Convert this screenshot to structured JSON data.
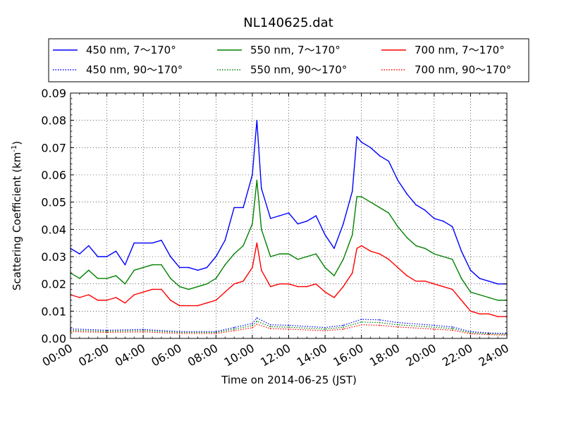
{
  "chart_data": {
    "type": "line",
    "title": "NL140625.dat",
    "xlabel": "Time on 2014-06-25 (JST)",
    "ylabel": "Scattering Coefficient (km",
    "ylabel_sup": "-1",
    "ylabel_close": ")",
    "xlim": [
      "00:00",
      "24:00"
    ],
    "ylim": [
      0,
      0.09
    ],
    "xticks": [
      "00:00",
      "02:00",
      "04:00",
      "06:00",
      "08:00",
      "10:00",
      "12:00",
      "14:00",
      "16:00",
      "18:00",
      "20:00",
      "22:00",
      "24:00"
    ],
    "yticks": [
      "0.00",
      "0.01",
      "0.02",
      "0.03",
      "0.04",
      "0.05",
      "0.06",
      "0.07",
      "0.08",
      "0.09"
    ],
    "grid": true,
    "legend_position": "top",
    "series": [
      {
        "name": "450 nm, 7～170°",
        "color": "#0000ff",
        "style": "solid",
        "x": [
          "00:00",
          "00:30",
          "01:00",
          "01:30",
          "02:00",
          "02:30",
          "03:00",
          "03:30",
          "04:00",
          "04:30",
          "05:00",
          "05:30",
          "06:00",
          "06:30",
          "07:00",
          "07:30",
          "08:00",
          "08:30",
          "09:00",
          "09:30",
          "10:00",
          "10:15",
          "10:30",
          "11:00",
          "11:30",
          "12:00",
          "12:30",
          "13:00",
          "13:30",
          "14:00",
          "14:30",
          "15:00",
          "15:30",
          "15:45",
          "16:00",
          "16:30",
          "17:00",
          "17:30",
          "18:00",
          "18:30",
          "19:00",
          "19:30",
          "20:00",
          "20:30",
          "21:00",
          "21:30",
          "22:00",
          "22:30",
          "23:00",
          "23:30",
          "24:00"
        ],
        "values": [
          0.033,
          0.031,
          0.034,
          0.03,
          0.03,
          0.032,
          0.027,
          0.035,
          0.035,
          0.035,
          0.036,
          0.03,
          0.026,
          0.026,
          0.025,
          0.026,
          0.03,
          0.036,
          0.048,
          0.048,
          0.06,
          0.08,
          0.055,
          0.044,
          0.045,
          0.046,
          0.042,
          0.043,
          0.045,
          0.038,
          0.033,
          0.042,
          0.054,
          0.074,
          0.072,
          0.07,
          0.067,
          0.065,
          0.058,
          0.053,
          0.049,
          0.047,
          0.044,
          0.043,
          0.041,
          0.032,
          0.025,
          0.022,
          0.021,
          0.02,
          0.02
        ]
      },
      {
        "name": "550 nm, 7～170°",
        "color": "#008000",
        "style": "solid",
        "x": [
          "00:00",
          "00:30",
          "01:00",
          "01:30",
          "02:00",
          "02:30",
          "03:00",
          "03:30",
          "04:00",
          "04:30",
          "05:00",
          "05:30",
          "06:00",
          "06:30",
          "07:00",
          "07:30",
          "08:00",
          "08:30",
          "09:00",
          "09:30",
          "10:00",
          "10:15",
          "10:30",
          "11:00",
          "11:30",
          "12:00",
          "12:30",
          "13:00",
          "13:30",
          "14:00",
          "14:30",
          "15:00",
          "15:30",
          "15:45",
          "16:00",
          "16:30",
          "17:00",
          "17:30",
          "18:00",
          "18:30",
          "19:00",
          "19:30",
          "20:00",
          "20:30",
          "21:00",
          "21:30",
          "22:00",
          "22:30",
          "23:00",
          "23:30",
          "24:00"
        ],
        "values": [
          0.024,
          0.022,
          0.025,
          0.022,
          0.022,
          0.023,
          0.02,
          0.025,
          0.026,
          0.027,
          0.027,
          0.022,
          0.019,
          0.018,
          0.019,
          0.02,
          0.022,
          0.027,
          0.031,
          0.034,
          0.042,
          0.058,
          0.04,
          0.03,
          0.031,
          0.031,
          0.029,
          0.03,
          0.031,
          0.026,
          0.023,
          0.029,
          0.038,
          0.052,
          0.052,
          0.05,
          0.048,
          0.046,
          0.041,
          0.037,
          0.034,
          0.033,
          0.031,
          0.03,
          0.029,
          0.022,
          0.017,
          0.016,
          0.015,
          0.014,
          0.014
        ]
      },
      {
        "name": "700 nm, 7～170°",
        "color": "#ff0000",
        "style": "solid",
        "x": [
          "00:00",
          "00:30",
          "01:00",
          "01:30",
          "02:00",
          "02:30",
          "03:00",
          "03:30",
          "04:00",
          "04:30",
          "05:00",
          "05:30",
          "06:00",
          "06:30",
          "07:00",
          "07:30",
          "08:00",
          "08:30",
          "09:00",
          "09:30",
          "10:00",
          "10:15",
          "10:30",
          "11:00",
          "11:30",
          "12:00",
          "12:30",
          "13:00",
          "13:30",
          "14:00",
          "14:30",
          "15:00",
          "15:30",
          "15:45",
          "16:00",
          "16:30",
          "17:00",
          "17:30",
          "18:00",
          "18:30",
          "19:00",
          "19:30",
          "20:00",
          "20:30",
          "21:00",
          "21:30",
          "22:00",
          "22:30",
          "23:00",
          "23:30",
          "24:00"
        ],
        "values": [
          0.016,
          0.015,
          0.016,
          0.014,
          0.014,
          0.015,
          0.013,
          0.016,
          0.017,
          0.018,
          0.018,
          0.014,
          0.012,
          0.012,
          0.012,
          0.013,
          0.014,
          0.017,
          0.02,
          0.021,
          0.026,
          0.035,
          0.025,
          0.019,
          0.02,
          0.02,
          0.019,
          0.019,
          0.02,
          0.017,
          0.015,
          0.019,
          0.024,
          0.033,
          0.034,
          0.032,
          0.031,
          0.029,
          0.026,
          0.023,
          0.021,
          0.021,
          0.02,
          0.019,
          0.018,
          0.014,
          0.01,
          0.009,
          0.009,
          0.008,
          0.008
        ]
      },
      {
        "name": "450 nm, 90～170°",
        "color": "#0000ff",
        "style": "dotted",
        "x": [
          "00:00",
          "02:00",
          "04:00",
          "06:00",
          "08:00",
          "09:00",
          "10:00",
          "10:15",
          "11:00",
          "12:00",
          "14:00",
          "15:00",
          "16:00",
          "17:00",
          "18:00",
          "20:00",
          "21:00",
          "22:00",
          "23:00",
          "24:00"
        ],
        "values": [
          0.0035,
          0.003,
          0.0033,
          0.0025,
          0.0025,
          0.004,
          0.0055,
          0.0075,
          0.005,
          0.0048,
          0.004,
          0.0048,
          0.007,
          0.0068,
          0.0058,
          0.0048,
          0.0042,
          0.0025,
          0.002,
          0.0018
        ]
      },
      {
        "name": "550 nm, 90～170°",
        "color": "#008000",
        "style": "dotted",
        "x": [
          "00:00",
          "02:00",
          "04:00",
          "06:00",
          "08:00",
          "09:00",
          "10:00",
          "10:15",
          "11:00",
          "12:00",
          "14:00",
          "15:00",
          "16:00",
          "17:00",
          "18:00",
          "20:00",
          "21:00",
          "22:00",
          "23:00",
          "24:00"
        ],
        "values": [
          0.003,
          0.0026,
          0.0029,
          0.0022,
          0.0022,
          0.0034,
          0.0047,
          0.0063,
          0.0043,
          0.0041,
          0.0034,
          0.0041,
          0.006,
          0.0058,
          0.005,
          0.0041,
          0.0036,
          0.0021,
          0.0017,
          0.0015
        ]
      },
      {
        "name": "700 nm, 90～170°",
        "color": "#ff0000",
        "style": "dotted",
        "x": [
          "00:00",
          "02:00",
          "04:00",
          "06:00",
          "08:00",
          "09:00",
          "10:00",
          "10:15",
          "11:00",
          "12:00",
          "14:00",
          "15:00",
          "16:00",
          "17:00",
          "18:00",
          "20:00",
          "21:00",
          "22:00",
          "23:00",
          "24:00"
        ],
        "values": [
          0.0025,
          0.0022,
          0.0024,
          0.0018,
          0.0018,
          0.0028,
          0.0039,
          0.0052,
          0.0036,
          0.0034,
          0.0028,
          0.0034,
          0.005,
          0.0048,
          0.0042,
          0.0034,
          0.003,
          0.0017,
          0.0014,
          0.0012
        ]
      }
    ]
  }
}
